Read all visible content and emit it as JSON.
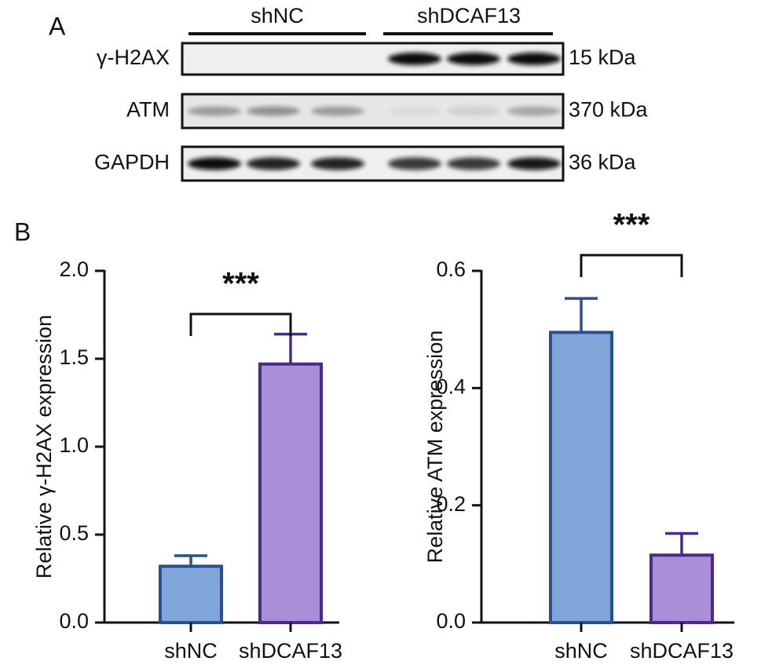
{
  "panel_labels": {
    "a": "A",
    "b": "B"
  },
  "blot": {
    "groups": [
      "shNC",
      "shDCAF13"
    ],
    "rows": [
      {
        "protein": "γ-H2AX",
        "size": "15 kDa"
      },
      {
        "protein": "ATM",
        "size": "370 kDa"
      },
      {
        "protein": "GAPDH",
        "size": "36 kDa"
      }
    ]
  },
  "chart_data": [
    {
      "type": "bar",
      "y_label": "Relative γ-H2AX expression",
      "categories": [
        "shNC",
        "shDCAF13"
      ],
      "values": [
        0.32,
        1.47
      ],
      "errors": [
        0.06,
        0.17
      ],
      "colors": [
        "#7fa5d9",
        "#a88fd8"
      ],
      "edge_colors": [
        "#2a4f92",
        "#4a2a8c"
      ],
      "ylim": [
        0,
        2
      ],
      "yticks": [
        {
          "value": 0,
          "label": "0.0"
        },
        0.5,
        {
          "value": 1,
          "label": "1.0"
        },
        1.5,
        {
          "value": 2,
          "label": "2.0"
        }
      ],
      "annotation": "***"
    },
    {
      "type": "bar",
      "y_label": "Relative ATM expression",
      "categories": [
        "shNC",
        "shDCAF13"
      ],
      "values": [
        0.495,
        0.115
      ],
      "errors": [
        0.058,
        0.037
      ],
      "colors": [
        "#7fa5d9",
        "#a88fd8"
      ],
      "edge_colors": [
        "#2a4f92",
        "#4a2a8c"
      ],
      "ylim": [
        0,
        0.6
      ],
      "yticks": [
        {
          "value": 0,
          "label": "0.0"
        },
        0.2,
        0.4,
        0.6
      ],
      "annotation": "***"
    }
  ]
}
